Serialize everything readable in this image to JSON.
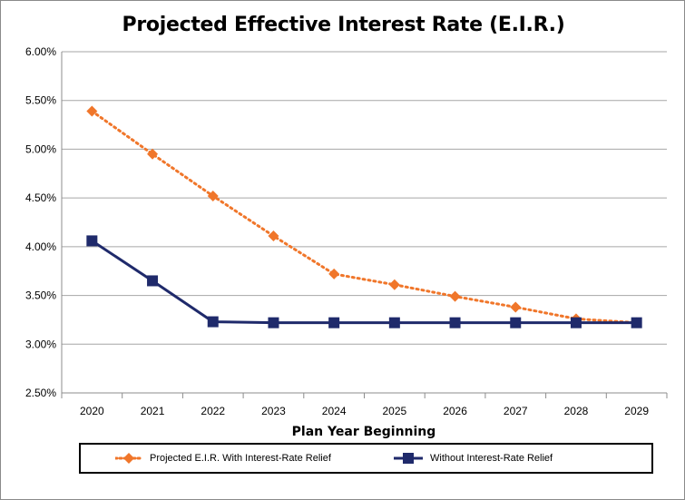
{
  "chart_data": {
    "type": "line",
    "title": "Projected Effective Interest Rate (E.I.R.)",
    "xlabel": "Plan Year Beginning",
    "ylabel": "",
    "categories": [
      "2020",
      "2021",
      "2022",
      "2023",
      "2024",
      "2025",
      "2026",
      "2027",
      "2028",
      "2029"
    ],
    "ylim": [
      2.5,
      6.0
    ],
    "yticks": [
      "2.50%",
      "3.00%",
      "3.50%",
      "4.00%",
      "4.50%",
      "5.00%",
      "5.50%",
      "6.00%"
    ],
    "grid": true,
    "legend_position": "bottom",
    "series": [
      {
        "name": "Projected E.I.R. With Interest-Rate Relief",
        "values": [
          5.39,
          4.95,
          4.52,
          4.11,
          3.72,
          3.61,
          3.49,
          3.38,
          3.26,
          3.22
        ],
        "color": "#f0762a",
        "style": "dotted",
        "marker": "diamond"
      },
      {
        "name": "Without Interest-Rate Relief",
        "values": [
          4.06,
          3.65,
          3.23,
          3.22,
          3.22,
          3.22,
          3.22,
          3.22,
          3.22,
          3.22
        ],
        "color": "#1f2a6b",
        "style": "solid",
        "marker": "square"
      }
    ]
  }
}
